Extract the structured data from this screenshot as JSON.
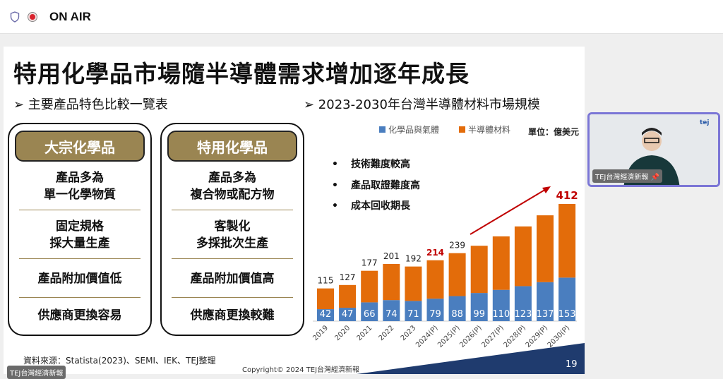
{
  "topbar": {
    "status": "ON AIR",
    "icons": [
      "shield-icon",
      "record-icon"
    ]
  },
  "slide": {
    "title": "特用化學品市場隨半導體需求增加逐年成長",
    "left_heading": "➢  主要產品特色比較一覽表",
    "right_heading": "➢  2023-2030年台灣半導體材料市場規模",
    "cards": [
      {
        "header": "大宗化學品",
        "rows": [
          [
            "產品多為",
            "單一化學物質"
          ],
          [
            "固定規格",
            "採大量生產"
          ],
          [
            "產品附加價值低"
          ],
          [
            "供應商更換容易"
          ]
        ]
      },
      {
        "header": "特用化學品",
        "rows": [
          [
            "產品多為",
            "複合物或配方物"
          ],
          [
            "客製化",
            "多採批次生產"
          ],
          [
            "產品附加價值高"
          ],
          [
            "供應商更換較難"
          ]
        ]
      }
    ],
    "bullets": [
      "技術難度較高",
      "產品取證難度高",
      "成本回收期長"
    ],
    "source": "資料來源：Statista(2023)、SEMI、IEK、TEJ整理",
    "copyright": "Copyright© 2024 TEJ台灣經濟新報",
    "page_number": "19",
    "watermark": "TEJ台灣經濟新報"
  },
  "chart_data": {
    "type": "bar",
    "stacked": true,
    "unit_label": "單位：億美元",
    "categories": [
      "2019",
      "2020",
      "2021",
      "2022",
      "2023",
      "2024(P)",
      "2025(P)",
      "2026(P)",
      "2027(P)",
      "2028(P)",
      "2029(P)",
      "2030(P)"
    ],
    "series": [
      {
        "name": "化學品與氣體",
        "color": "#4a7ebf",
        "values": [
          42,
          47,
          66,
          74,
          71,
          79,
          88,
          99,
          110,
          123,
          137,
          153
        ]
      },
      {
        "name": "半導體材料",
        "color": "#e36c0a",
        "values": [
          73,
          80,
          111,
          127,
          121,
          135,
          151,
          166,
          188,
          210,
          235,
          259
        ]
      }
    ],
    "totals": [
      115,
      127,
      177,
      201,
      192,
      214,
      239,
      265,
      298,
      333,
      372,
      412
    ],
    "total_labels": [
      "115",
      "127",
      "177",
      "201",
      "192",
      "214",
      "239",
      "",
      "",
      "",
      "",
      "412"
    ],
    "highlight_color": "#c00000",
    "highlight_totals": [
      "2024(P)",
      "2030(P)"
    ]
  },
  "camera": {
    "label": "TEJ台灣經濟新報",
    "pin_icon": "pin-icon"
  }
}
